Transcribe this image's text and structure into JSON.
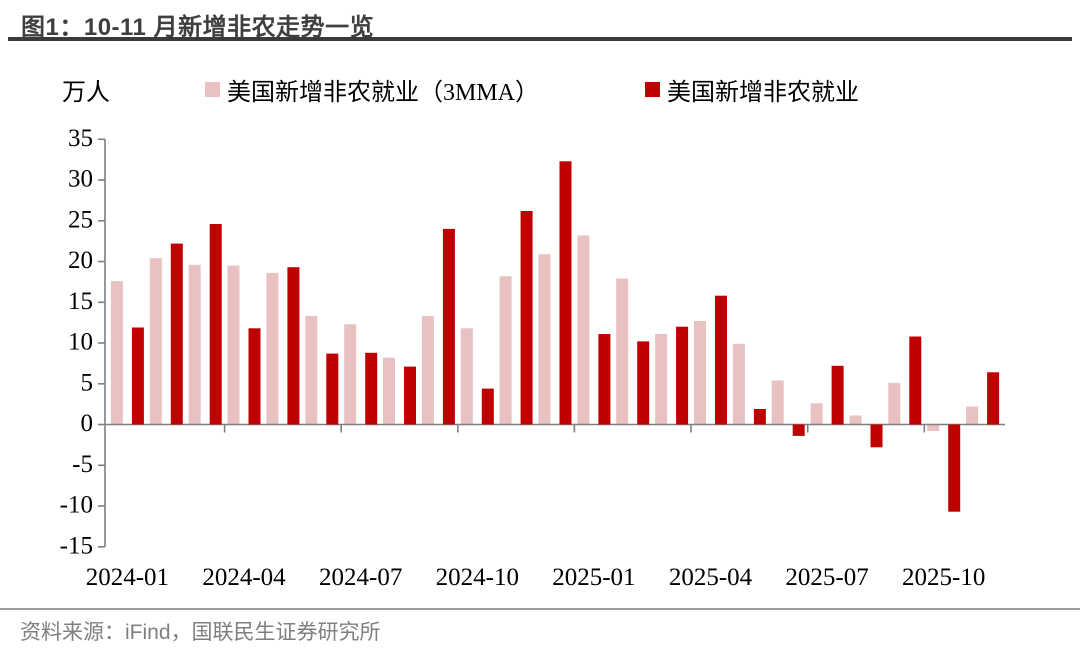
{
  "header": {
    "title": "图1：10-11 月新增非农走势一览"
  },
  "footer": {
    "source": "资料来源：iFind，国联民生证券研究所"
  },
  "colors": {
    "mma_bar": "#EAC1C1",
    "actual_bar": "#C00000",
    "axis": "#7f7f7f",
    "tick_text": "#000000",
    "title_text": "#3f3f3f",
    "footer_text": "#7f7f7f"
  },
  "chart_data": {
    "type": "bar",
    "title": "图1：10-11 月新增非农走势一览",
    "unit": "万人",
    "xlabel": "",
    "ylabel": "万人",
    "ylim": [
      -15,
      35
    ],
    "ytick_step": 5,
    "grid": false,
    "legend_position": "top",
    "categories": [
      "2024-01",
      "2024-02",
      "2024-03",
      "2024-04",
      "2024-05",
      "2024-06",
      "2024-07",
      "2024-08",
      "2024-09",
      "2024-10",
      "2024-11",
      "2024-12",
      "2025-01",
      "2025-02",
      "2025-03",
      "2025-04",
      "2025-05",
      "2025-06",
      "2025-07",
      "2025-08",
      "2025-09",
      "2025-10",
      "2025-11"
    ],
    "xtick_labels": [
      "2024-01",
      "2024-04",
      "2024-07",
      "2024-10",
      "2025-01",
      "2025-04",
      "2025-07",
      "2025-10"
    ],
    "series": [
      {
        "name": "美国新增非农就业（3MMA）",
        "color": "#EAC1C1",
        "values": [
          17.6,
          20.4,
          19.6,
          19.5,
          18.6,
          13.3,
          12.3,
          8.2,
          13.3,
          11.8,
          18.2,
          20.9,
          23.2,
          17.9,
          11.1,
          12.7,
          9.9,
          5.4,
          2.6,
          1.1,
          5.1,
          -0.8,
          2.2
        ]
      },
      {
        "name": "美国新增非农就业",
        "color": "#C00000",
        "values": [
          11.9,
          22.2,
          24.6,
          11.8,
          19.3,
          8.7,
          8.8,
          7.1,
          24.0,
          4.4,
          26.2,
          32.3,
          11.1,
          10.2,
          12.0,
          15.8,
          1.9,
          -1.4,
          7.2,
          -2.8,
          10.8,
          -10.7,
          6.4
        ]
      }
    ]
  }
}
